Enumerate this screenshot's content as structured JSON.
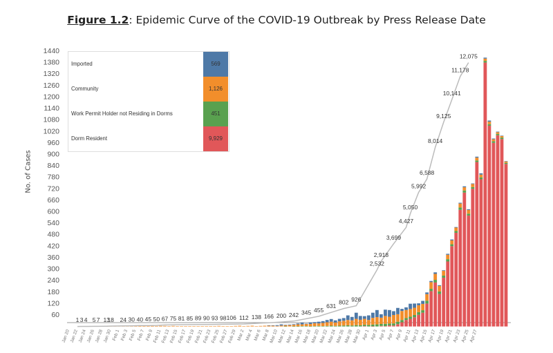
{
  "title": {
    "prefix": "Figure 1.2",
    "rest": ": Epidemic Curve of the COVID-19 Outbreak by Press Release Date"
  },
  "legend": [
    {
      "label": "Imported",
      "value": "569",
      "color": "#4e79a7"
    },
    {
      "label": "Community",
      "value": "1,126",
      "color": "#f28e2b"
    },
    {
      "label": "Work Permit Holder not Residing in Dorms",
      "value": "451",
      "color": "#59a14f"
    },
    {
      "label": "Dorm Resident",
      "value": "9,929",
      "color": "#e15759"
    }
  ],
  "chart_data": {
    "type": "bar",
    "stacked": true,
    "ylabel": "No. of Cases",
    "ylim": [
      0,
      1480
    ],
    "yticks": [
      60,
      120,
      180,
      240,
      300,
      360,
      420,
      480,
      540,
      600,
      660,
      720,
      780,
      840,
      900,
      960,
      1020,
      1080,
      1140,
      1200,
      1260,
      1320,
      1380,
      1440
    ],
    "grid": false,
    "legend_position": "top-left",
    "x_tick_labels": [
      "Jan 20",
      "Jan 22",
      "Jan 24",
      "Jan 26",
      "Jan 28",
      "Jan 30",
      "Feb 1",
      "Feb 3",
      "Feb 5",
      "Feb 7",
      "Feb 9",
      "Feb 11",
      "Feb 13",
      "Feb 15",
      "Feb 17",
      "Feb 19",
      "Feb 21",
      "Feb 23",
      "Feb 25",
      "Feb 27",
      "Feb 29",
      "Mar 2",
      "Mar 4",
      "Mar 6",
      "Mar 8",
      "Mar 10",
      "Mar 12",
      "Mar 14",
      "Mar 16",
      "Mar 18",
      "Mar 20",
      "Mar 22",
      "Mar 24",
      "Mar 26",
      "Mar 28",
      "Mar 30",
      "Apr 1",
      "Apr 3",
      "Apr 5",
      "Apr 7",
      "Apr 9",
      "Apr 11",
      "Apr 13",
      "Apr 15",
      "Apr 17",
      "Apr 19",
      "Apr 21",
      "Apr 23",
      "Apr 25",
      "Apr 27"
    ],
    "daily": {
      "imported": [
        0,
        0,
        0,
        1,
        2,
        0,
        0,
        0,
        0,
        0,
        1,
        0,
        0,
        0,
        0,
        0,
        0,
        0,
        0,
        0,
        0,
        0,
        0,
        0,
        0,
        0,
        0,
        0,
        0,
        0,
        0,
        0,
        0,
        0,
        0,
        0,
        0,
        0,
        0,
        0,
        0,
        0,
        0,
        0,
        0,
        0,
        0,
        0,
        1,
        2,
        4,
        6,
        2,
        3,
        3,
        5,
        9,
        2,
        8,
        6,
        9,
        9,
        12,
        14,
        11,
        13,
        14,
        24,
        18,
        32,
        20,
        14,
        24,
        27,
        37,
        18,
        33,
        35,
        20,
        33,
        11,
        14,
        28,
        22,
        10,
        16,
        9,
        6,
        8,
        4,
        3,
        5,
        5,
        3,
        4,
        5,
        4,
        3,
        5,
        7,
        5,
        6,
        4,
        3,
        2,
        2
      ],
      "community": [
        0,
        0,
        0,
        0,
        0,
        0,
        0,
        0,
        1,
        1,
        2,
        2,
        3,
        2,
        3,
        2,
        3,
        4,
        2,
        3,
        3,
        2,
        3,
        3,
        1,
        3,
        2,
        2,
        1,
        1,
        1,
        2,
        2,
        2,
        1,
        2,
        3,
        2,
        1,
        2,
        3,
        4,
        2,
        3,
        4,
        2,
        3,
        4,
        5,
        4,
        3,
        5,
        6,
        7,
        8,
        10,
        9,
        11,
        12,
        15,
        13,
        17,
        19,
        21,
        18,
        23,
        25,
        28,
        27,
        33,
        29,
        31,
        26,
        35,
        38,
        33,
        41,
        36,
        44,
        39,
        47,
        42,
        40,
        38,
        36,
        33,
        34,
        35,
        31,
        29,
        25,
        23,
        20,
        18,
        21,
        17,
        19,
        16,
        15,
        14,
        12,
        13,
        10,
        9,
        8,
        7
      ],
      "wp": [
        0,
        0,
        0,
        0,
        0,
        0,
        0,
        0,
        0,
        0,
        0,
        0,
        0,
        0,
        0,
        0,
        0,
        0,
        0,
        0,
        0,
        0,
        0,
        0,
        0,
        0,
        0,
        0,
        0,
        0,
        0,
        0,
        0,
        0,
        0,
        0,
        0,
        0,
        0,
        0,
        0,
        0,
        0,
        0,
        0,
        0,
        0,
        0,
        0,
        0,
        0,
        0,
        1,
        0,
        1,
        1,
        2,
        2,
        1,
        2,
        3,
        2,
        3,
        4,
        3,
        4,
        5,
        6,
        5,
        7,
        6,
        7,
        8,
        9,
        11,
        10,
        12,
        9,
        11,
        13,
        12,
        10,
        11,
        12,
        14,
        13,
        15,
        12,
        14,
        13,
        11,
        12,
        10,
        9,
        12,
        11,
        10,
        9,
        8,
        10,
        9,
        8,
        9,
        7,
        8,
        6
      ],
      "dorm": [
        0,
        0,
        0,
        0,
        0,
        0,
        0,
        0,
        0,
        0,
        0,
        0,
        0,
        0,
        0,
        0,
        0,
        0,
        0,
        0,
        0,
        0,
        0,
        0,
        0,
        0,
        0,
        0,
        0,
        0,
        0,
        0,
        0,
        0,
        0,
        0,
        0,
        0,
        0,
        0,
        0,
        0,
        0,
        0,
        0,
        0,
        0,
        0,
        0,
        0,
        0,
        0,
        0,
        0,
        0,
        0,
        0,
        0,
        0,
        0,
        0,
        0,
        0,
        0,
        0,
        0,
        0,
        0,
        0,
        0,
        0,
        2,
        0,
        1,
        0,
        3,
        2,
        6,
        5,
        12,
        22,
        34,
        40,
        48,
        61,
        72,
        120,
        185,
        230,
        170,
        255,
        340,
        420,
        490,
        610,
        700,
        580,
        720,
        860,
        770,
        1380,
        1050,
        960,
        1000,
        980,
        850
      ]
    },
    "cumulative_labels": [
      {
        "day": 2,
        "text": "1"
      },
      {
        "day": 3,
        "text": "3"
      },
      {
        "day": 4,
        "text": "4"
      },
      {
        "day": 6,
        "text": "5"
      },
      {
        "day": 7,
        "text": "7"
      },
      {
        "day": 9,
        "text": "13"
      },
      {
        "day": 10,
        "text": "18"
      },
      {
        "day": 13,
        "text": "24"
      },
      {
        "day": 15,
        "text": "30"
      },
      {
        "day": 17,
        "text": "40"
      },
      {
        "day": 19,
        "text": "45"
      },
      {
        "day": 21,
        "text": "50"
      },
      {
        "day": 23,
        "text": "67"
      },
      {
        "day": 25,
        "text": "75"
      },
      {
        "day": 27,
        "text": "81"
      },
      {
        "day": 29,
        "text": "85"
      },
      {
        "day": 31,
        "text": "89"
      },
      {
        "day": 33,
        "text": "90"
      },
      {
        "day": 35,
        "text": "93"
      },
      {
        "day": 37,
        "text": "98"
      },
      {
        "day": 39,
        "text": "106"
      },
      {
        "day": 42,
        "text": "112"
      },
      {
        "day": 45,
        "text": "138"
      },
      {
        "day": 48,
        "text": "166"
      },
      {
        "day": 51,
        "text": "200"
      },
      {
        "day": 54,
        "text": "242"
      },
      {
        "day": 57,
        "text": "345"
      },
      {
        "day": 60,
        "text": "455"
      },
      {
        "day": 63,
        "text": "631"
      },
      {
        "day": 66,
        "text": "802"
      },
      {
        "day": 69,
        "text": "926"
      },
      {
        "day": 74,
        "text": "2,532"
      },
      {
        "day": 75,
        "text": "2,918"
      },
      {
        "day": 78,
        "text": "3,699"
      },
      {
        "day": 81,
        "text": "4,427"
      },
      {
        "day": 82,
        "text": "5,050"
      },
      {
        "day": 84,
        "text": "5,992"
      },
      {
        "day": 86,
        "text": "6,588"
      },
      {
        "day": 88,
        "text": "8,014"
      },
      {
        "day": 90,
        "text": "9,125"
      },
      {
        "day": 92,
        "text": "10,141"
      },
      {
        "day": 94,
        "text": "11,178"
      },
      {
        "day": 96,
        "text": "12,075"
      }
    ]
  }
}
